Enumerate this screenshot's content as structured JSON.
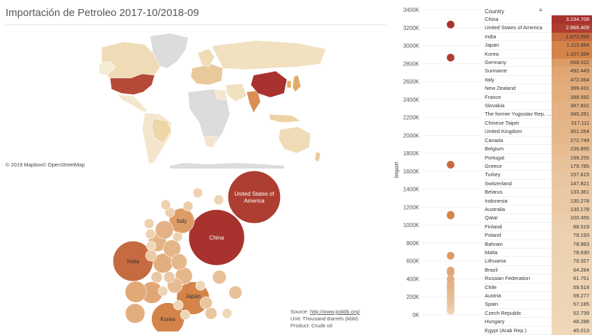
{
  "title": "Importación de Petroleo 2017-10/2018-09",
  "map_credit": "© 2019 Mapbox© OpenStreetMap",
  "source": {
    "label": "Source:",
    "url": "http://www.jodidb.org/",
    "unit": "Unit: Thousand Barrels (kbbl)",
    "product": "Product: Crude oil"
  },
  "table": {
    "column_header": "Country"
  },
  "chart_data": {
    "type": "table",
    "countries": [
      {
        "name": "China",
        "value": "3.234.708"
      },
      {
        "name": "United States of America",
        "value": "2.866.409"
      },
      {
        "name": "India",
        "value": "1.672.599"
      },
      {
        "name": "Japan",
        "value": "1.113.984"
      },
      {
        "name": "Korea",
        "value": "1.107.394"
      },
      {
        "name": "Germany",
        "value": "658.022"
      },
      {
        "name": "Suriname",
        "value": "492.449"
      },
      {
        "name": "Italy",
        "value": "472.064"
      },
      {
        "name": "New Zealand",
        "value": "399.431"
      },
      {
        "name": "France",
        "value": "398.592"
      },
      {
        "name": "Slovakia",
        "value": "347.832"
      },
      {
        "name": "The former Yugoslav Rep. ...",
        "value": "345.281"
      },
      {
        "name": "Chinese Taipei",
        "value": "317.111"
      },
      {
        "name": "United Kingdom",
        "value": "301.264"
      },
      {
        "name": "Canada",
        "value": "272.749"
      },
      {
        "name": "Belgium",
        "value": "236.895"
      },
      {
        "name": "Portugal",
        "value": "199.255"
      },
      {
        "name": "Greece",
        "value": "179.785"
      },
      {
        "name": "Turkey",
        "value": "157.615"
      },
      {
        "name": "Switzerland",
        "value": "147.821"
      },
      {
        "name": "Belarus",
        "value": "133.361"
      },
      {
        "name": "Indonesia",
        "value": "130.278"
      },
      {
        "name": "Australia",
        "value": "130.178"
      },
      {
        "name": "Qatar",
        "value": "100.455"
      },
      {
        "name": "Finland",
        "value": "88.019"
      },
      {
        "name": "Poland",
        "value": "79.193"
      },
      {
        "name": "Bahrain",
        "value": "78.983"
      },
      {
        "name": "Malta",
        "value": "78.630"
      },
      {
        "name": "Lithuania",
        "value": "70.327"
      },
      {
        "name": "Brazil",
        "value": "64.284"
      },
      {
        "name": "Russian Federation",
        "value": "61.751"
      },
      {
        "name": "Chile",
        "value": "59.518"
      },
      {
        "name": "Austria",
        "value": "59.277"
      },
      {
        "name": "Spain",
        "value": "57.185"
      },
      {
        "name": "Czech Republic",
        "value": "52.739"
      },
      {
        "name": "Hungary",
        "value": "48.288"
      },
      {
        "name": "Egypt (Arab Rep.)",
        "value": "45.013"
      }
    ],
    "strip": {
      "ylabel": "Import",
      "ylim": [
        0,
        3400000
      ],
      "ticks": [
        "0K",
        "200K",
        "400K",
        "600K",
        "800K",
        "1000K",
        "1200K",
        "1400K",
        "1600K",
        "1800K",
        "2000K",
        "2200K",
        "2400K",
        "2600K",
        "2800K",
        "3000K",
        "3200K",
        "3400K"
      ]
    },
    "bubble_labels": [
      "China",
      "United States of America",
      "India",
      "Japan",
      "Korea",
      "Italy"
    ]
  },
  "colors": {
    "high": "#a8322d",
    "mid": "#d88b4c",
    "low": "#f0ddb6",
    "lowest": "#f5ecd6"
  }
}
